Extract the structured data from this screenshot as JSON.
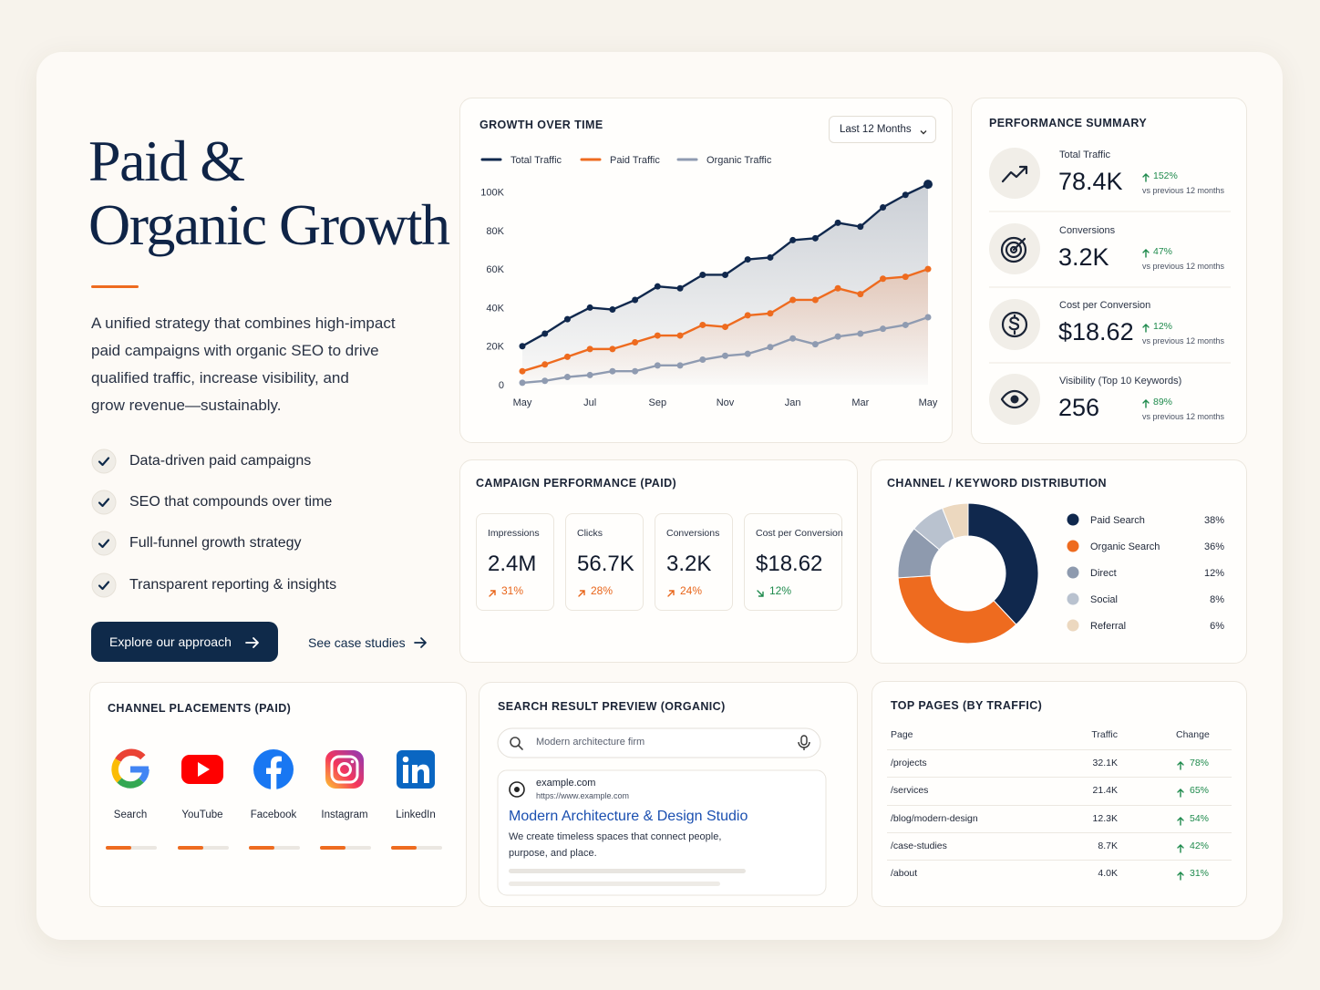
{
  "hero": {
    "title_lines": [
      "Paid &",
      "Organic Growth"
    ],
    "description_lines": [
      "A unified strategy that combines high-impact",
      "paid campaigns with organic SEO to drive",
      "qualified traffic, increase visibility, and",
      "grow revenue—sustainably."
    ],
    "features": [
      "Data-driven paid campaigns",
      "SEO that compounds over time",
      "Full-funnel growth strategy",
      "Transparent reporting & insights"
    ],
    "primary_button": "Explore our approach",
    "secondary_link": "See case studies"
  },
  "chart_data": [
    {
      "type": "line",
      "title": "GROWTH OVER TIME",
      "range_selector": "Last 12 Months",
      "categories": [
        "May",
        null,
        null,
        "Jul",
        null,
        null,
        "Sep",
        null,
        null,
        "Nov",
        null,
        null,
        "Jan",
        null,
        null,
        "Mar",
        null,
        null,
        "May"
      ],
      "series": [
        {
          "name": "Total Traffic",
          "color": "#10284d",
          "values": [
            20000,
            26500,
            34000,
            40000,
            39000,
            44000,
            51000,
            50000,
            57000,
            57000,
            65000,
            66000,
            75000,
            76000,
            84000,
            82000,
            92000,
            98500,
            104000
          ]
        },
        {
          "name": "Paid Traffic",
          "color": "#ee6b1f",
          "values": [
            7000,
            10500,
            14500,
            18500,
            18500,
            22000,
            25500,
            25500,
            31000,
            30000,
            36000,
            37000,
            44000,
            44000,
            50000,
            47000,
            55000,
            56000,
            60000
          ]
        },
        {
          "name": "Organic Traffic",
          "color": "#8f9bb1",
          "values": [
            1000,
            2000,
            4000,
            5000,
            7000,
            7000,
            10000,
            10000,
            13000,
            15000,
            16000,
            19500,
            24000,
            21000,
            25000,
            26500,
            29000,
            31000,
            35000
          ]
        }
      ],
      "ylim": [
        0,
        105000
      ],
      "yticks": [
        0,
        {
          "value": 20000,
          "label": "20K"
        },
        {
          "value": 40000,
          "label": "40K"
        },
        {
          "value": 60000,
          "label": "60K"
        },
        {
          "value": 80000,
          "label": "80K"
        },
        {
          "value": 100000,
          "label": "100K"
        }
      ],
      "area": true
    },
    {
      "type": "donut",
      "title": "CHANNEL / KEYWORD DISTRIBUTION",
      "categories": [
        "Paid Search",
        "Organic Search",
        "Direct",
        "Social",
        "Referral"
      ],
      "values": [
        38,
        36,
        12,
        8,
        6
      ],
      "value_labels": [
        "38%",
        "36%",
        "12%",
        "8%",
        "6%"
      ],
      "colors": [
        "#10284d",
        "#ee6b1f",
        "#8e9aae",
        "#b9c2cf",
        "#ecd8bf"
      ]
    }
  ],
  "performance_summary": {
    "title": "PERFORMANCE SUMMARY",
    "items": [
      {
        "label": "Total Traffic",
        "value": "78.4K",
        "change": "152%",
        "note": "vs previous 12 months"
      },
      {
        "label": "Conversions",
        "value": "3.2K",
        "change": "47%",
        "note": "vs previous 12 months"
      },
      {
        "label": "Cost per Conversion",
        "value": "$18.62",
        "change": "12%",
        "note": "vs previous 12 months"
      },
      {
        "label": "Visibility (Top 10 Keywords)",
        "value": "256",
        "change": "89%",
        "note": "vs previous 12 months"
      }
    ]
  },
  "campaign_performance": {
    "title": "CAMPAIGN PERFORMANCE (PAID)",
    "cards": [
      {
        "label": "Impressions",
        "value": "2.4M",
        "change": "31%"
      },
      {
        "label": "Clicks",
        "value": "56.7K",
        "change": "28%"
      },
      {
        "label": "Conversions",
        "value": "3.2K",
        "change": "24%"
      },
      {
        "label": "Cost per Conversion",
        "value": "$18.62",
        "change": "12%"
      }
    ]
  },
  "channel_placements": {
    "title": "CHANNEL PLACEMENTS (PAID)",
    "xlim": [
      0,
      100
    ],
    "channels": [
      {
        "label": "Search",
        "value": 50
      },
      {
        "label": "YouTube",
        "value": 50
      },
      {
        "label": "Facebook",
        "value": 50
      },
      {
        "label": "Instagram",
        "value": 50
      },
      {
        "label": "LinkedIn",
        "value": 50
      }
    ]
  },
  "search_preview": {
    "title": "SEARCH RESULT PREVIEW (ORGANIC)",
    "query": "Modern architecture firm",
    "result": {
      "domain": "example.com",
      "url": "https://www.example.com",
      "title": "Modern Architecture & Design Studio",
      "snippet_lines": [
        "We create timeless spaces that connect people,",
        "purpose, and place."
      ]
    }
  },
  "top_pages": {
    "title": "TOP PAGES (BY TRAFFIC)",
    "columns": [
      "Page",
      "Traffic",
      "Change"
    ],
    "rows": [
      [
        "/projects",
        "32.1K",
        "78%"
      ],
      [
        "/services",
        "21.4K",
        "65%"
      ],
      [
        "/blog/modern-design",
        "12.3K",
        "54%"
      ],
      [
        "/case-studies",
        "8.7K",
        "42%"
      ],
      [
        "/about",
        "4.0K",
        "31%"
      ]
    ]
  }
}
